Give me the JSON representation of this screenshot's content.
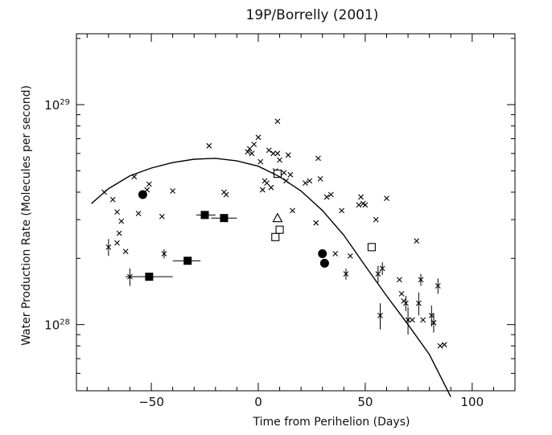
{
  "chart_data": {
    "type": "scatter",
    "title": "19P/Borrelly (2001)",
    "xlabel": "Time from Perihelion (Days)",
    "ylabel": "Water Production Rate (Molecules per second)",
    "xlim": [
      -85,
      120
    ],
    "ylim": [
      5e+27,
      2.1e+29
    ],
    "yscale": "log",
    "grid": false,
    "x_ticks": [
      {
        "value": -50,
        "label": "−50"
      },
      {
        "value": 0,
        "label": "0"
      },
      {
        "value": 50,
        "label": "50"
      },
      {
        "value": 100,
        "label": "100"
      }
    ],
    "y_ticks": [
      {
        "value": 1e+28,
        "base": "10",
        "exp": "28"
      },
      {
        "value": 1e+29,
        "base": "10",
        "exp": "29"
      }
    ],
    "series": [
      {
        "marker": "x",
        "points": [
          [
            -72,
            4e+28
          ],
          [
            -68,
            3.7e+28
          ],
          [
            -66,
            3.25e+28
          ],
          [
            -64,
            2.95e+28
          ],
          [
            -65,
            2.6e+28
          ],
          [
            -66,
            2.35e+28
          ],
          [
            -62,
            2.15e+28
          ],
          [
            -58,
            4.7e+28
          ],
          [
            -56,
            3.2e+28
          ],
          [
            -52,
            4.1e+28
          ],
          [
            -51,
            4.35e+28
          ],
          [
            -45,
            3.1e+28
          ],
          [
            -40,
            4.05e+28
          ],
          [
            -23,
            6.5e+28
          ],
          [
            -16,
            4e+28
          ],
          [
            -15,
            3.9e+28
          ],
          [
            -5,
            6.1e+28
          ],
          [
            -4,
            6.3e+28
          ],
          [
            -3,
            6e+28
          ],
          [
            -2,
            6.6e+28
          ],
          [
            0,
            7.1e+28
          ],
          [
            1,
            5.5e+28
          ],
          [
            2,
            4.1e+28
          ],
          [
            3,
            4.5e+28
          ],
          [
            4,
            4.4e+28
          ],
          [
            5,
            6.2e+28
          ],
          [
            6,
            4.2e+28
          ],
          [
            7,
            6e+28
          ],
          [
            8,
            5e+28
          ],
          [
            9,
            6e+28
          ],
          [
            9,
            8.4e+28
          ],
          [
            10,
            5.6e+28
          ],
          [
            12,
            4.9e+28
          ],
          [
            13,
            4.5e+28
          ],
          [
            14,
            5.9e+28
          ],
          [
            15,
            4.8e+28
          ],
          [
            16,
            3.3e+28
          ],
          [
            22,
            4.4e+28
          ],
          [
            24,
            4.5e+28
          ],
          [
            27,
            2.9e+28
          ],
          [
            28,
            5.7e+28
          ],
          [
            29,
            4.6e+28
          ],
          [
            32,
            3.8e+28
          ],
          [
            34,
            3.9e+28
          ],
          [
            36,
            2.1e+28
          ],
          [
            39,
            3.3e+28
          ],
          [
            43,
            2.05e+28
          ],
          [
            47,
            3.5e+28
          ],
          [
            48,
            3.8e+28
          ],
          [
            49,
            3.55e+28
          ],
          [
            50,
            3.5e+28
          ],
          [
            55,
            3e+28
          ],
          [
            60,
            3.75e+28
          ],
          [
            66,
            1.6e+28
          ],
          [
            67,
            1.38e+28
          ],
          [
            68,
            1.28e+28
          ],
          [
            72,
            1.05e+28
          ],
          [
            74,
            2.4e+28
          ],
          [
            77,
            1.05e+28
          ],
          [
            85,
            8e+27
          ],
          [
            87,
            8.1e+27
          ]
        ]
      },
      {
        "marker": "x-errorbar",
        "points": [
          [
            -70,
            2.25e+28,
            2e+27
          ],
          [
            -60,
            1.65e+28,
            1.5e+27
          ],
          [
            -44,
            2.1e+28,
            1e+27
          ],
          [
            41,
            1.7e+28,
            1e+27
          ],
          [
            56,
            1.7e+28,
            1.5e+27
          ],
          [
            57,
            1.1e+28,
            1.5e+27
          ],
          [
            58,
            1.8e+28,
            1.2e+27
          ],
          [
            69,
            1.25e+28,
            1e+27
          ],
          [
            70,
            1.05e+28,
            1.5e+27
          ],
          [
            75,
            1.25e+28,
            1.5e+27
          ],
          [
            76,
            1.6e+28,
            1e+27
          ],
          [
            81,
            1.1e+28,
            1.2e+27
          ],
          [
            82,
            1.02e+28,
            1e+27
          ],
          [
            84,
            1.5e+28,
            1.2e+27
          ]
        ]
      },
      {
        "marker": "filled-square",
        "points": [
          [
            -51,
            1.65e+28,
            -62,
            -40
          ],
          [
            -33,
            1.95e+28,
            -40,
            -27
          ],
          [
            -25,
            3.15e+28,
            -29,
            -20
          ],
          [
            -16,
            3.05e+28,
            -22,
            -10
          ]
        ]
      },
      {
        "marker": "filled-circle",
        "points": [
          [
            -54,
            3.9e+28
          ],
          [
            30,
            2.1e+28
          ],
          [
            31,
            1.9e+28
          ]
        ]
      },
      {
        "marker": "open-square",
        "points": [
          [
            9,
            4.85e+28
          ],
          [
            8,
            2.5e+28
          ],
          [
            10,
            2.7e+28
          ],
          [
            53,
            2.25e+28
          ]
        ]
      },
      {
        "marker": "open-triangle",
        "points": [
          [
            9,
            3.05e+28
          ]
        ]
      },
      {
        "marker": "line",
        "points": [
          [
            -78,
            3.55e+28
          ],
          [
            -70,
            4.15e+28
          ],
          [
            -60,
            4.75e+28
          ],
          [
            -50,
            5.15e+28
          ],
          [
            -40,
            5.45e+28
          ],
          [
            -30,
            5.65e+28
          ],
          [
            -20,
            5.7e+28
          ],
          [
            -10,
            5.55e+28
          ],
          [
            0,
            5.25e+28
          ],
          [
            10,
            4.7e+28
          ],
          [
            20,
            4.05e+28
          ],
          [
            30,
            3.3e+28
          ],
          [
            40,
            2.55e+28
          ],
          [
            50,
            1.85e+28
          ],
          [
            60,
            1.35e+28
          ],
          [
            70,
            1e+28
          ],
          [
            80,
            7.3e+27
          ],
          [
            90,
            4.7e+27
          ]
        ]
      }
    ]
  }
}
